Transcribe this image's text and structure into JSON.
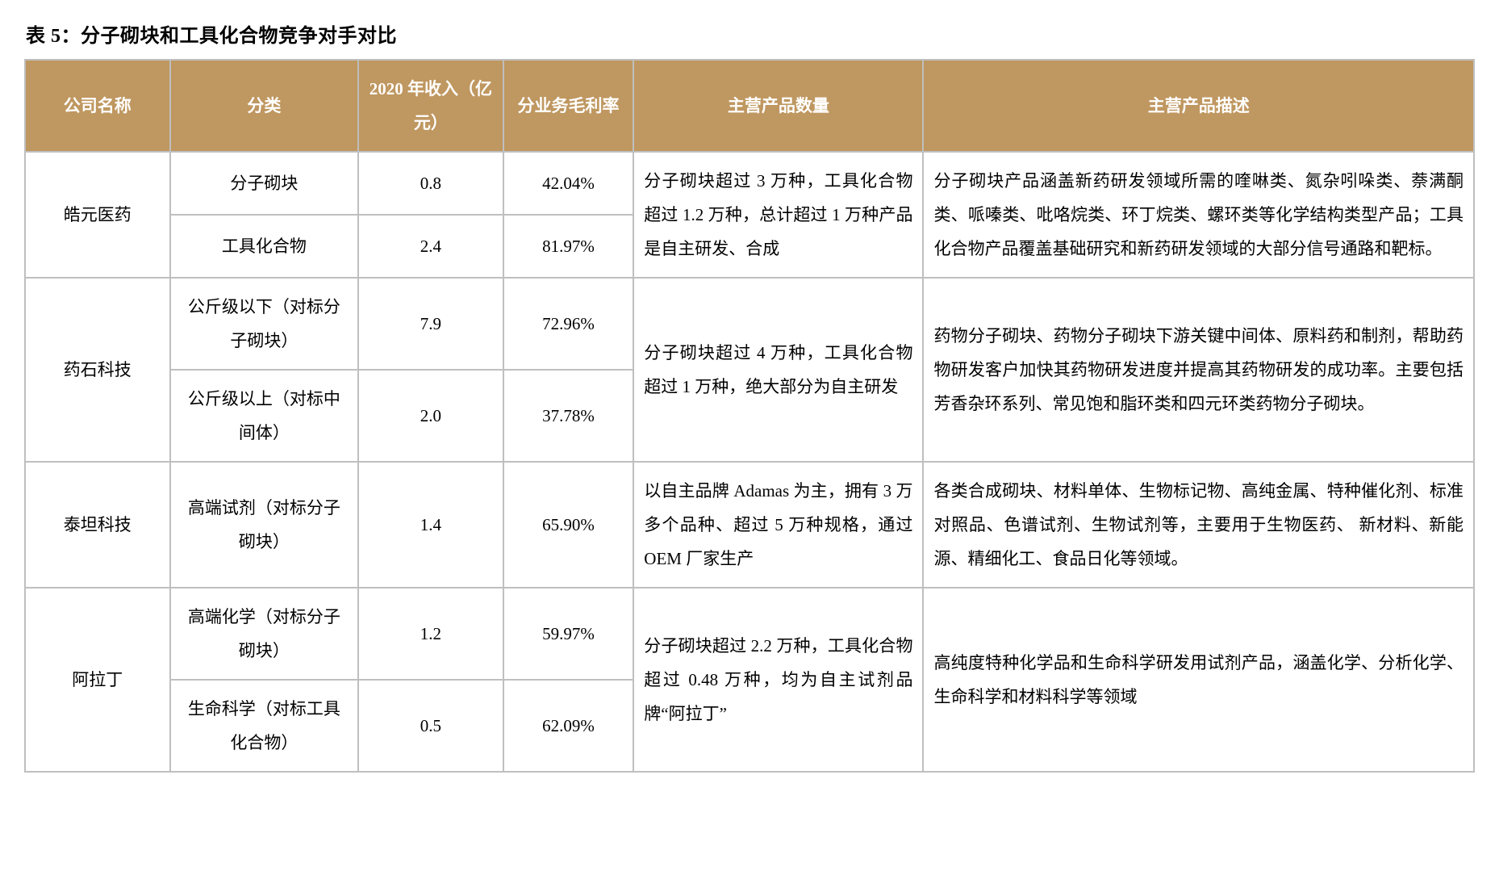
{
  "caption": "表 5：分子砌块和工具化合物竞争对手对比",
  "headers": {
    "company": "公司名称",
    "category": "分类",
    "revenue": "2020 年收入（亿元）",
    "margin": "分业务毛利率",
    "qty": "主营产品数量",
    "desc": "主营产品描述"
  },
  "companies": [
    {
      "name": "皓元医药",
      "segments": [
        {
          "category": "分子砌块",
          "revenue": "0.8",
          "margin": "42.04%"
        },
        {
          "category": "工具化合物",
          "revenue": "2.4",
          "margin": "81.97%"
        }
      ],
      "qty": "分子砌块超过 3 万种，工具化合物超过 1.2 万种，总计超过 1 万种产品是自主研发、合成",
      "desc": "分子砌块产品涵盖新药研发领域所需的喹啉类、氮杂吲哚类、萘满酮类、哌嗪类、吡咯烷类、环丁烷类、螺环类等化学结构类型产品；工具化合物产品覆盖基础研究和新药研发领域的大部分信号通路和靶标。"
    },
    {
      "name": "药石科技",
      "segments": [
        {
          "category": "公斤级以下（对标分子砌块）",
          "revenue": "7.9",
          "margin": "72.96%"
        },
        {
          "category": "公斤级以上（对标中间体）",
          "revenue": "2.0",
          "margin": "37.78%"
        }
      ],
      "qty": "分子砌块超过 4 万种，工具化合物超过 1 万种，绝大部分为自主研发",
      "desc": "药物分子砌块、药物分子砌块下游关键中间体、原料药和制剂，帮助药物研发客户加快其药物研发进度并提高其药物研发的成功率。主要包括芳香杂环系列、常见饱和脂环类和四元环类药物分子砌块。"
    },
    {
      "name": "泰坦科技",
      "segments": [
        {
          "category": "高端试剂（对标分子砌块）",
          "revenue": "1.4",
          "margin": "65.90%"
        }
      ],
      "qty": "以自主品牌 Adamas 为主，拥有 3 万多个品种、超过 5 万种规格，通过OEM 厂家生产",
      "desc": "各类合成砌块、材料单体、生物标记物、高纯金属、特种催化剂、标准对照品、色谱试剂、生物试剂等，主要用于生物医药、 新材料、新能源、精细化工、食品日化等领域。"
    },
    {
      "name": "阿拉丁",
      "segments": [
        {
          "category": "高端化学（对标分子砌块）",
          "revenue": "1.2",
          "margin": "59.97%"
        },
        {
          "category": "生命科学（对标工具化合物）",
          "revenue": "0.5",
          "margin": "62.09%"
        }
      ],
      "qty": "分子砌块超过 2.2 万种，工具化合物超过 0.48 万种，均为自主试剂品牌“阿拉丁”",
      "desc": "高纯度特种化学品和生命科学研发用试剂产品，涵盖化学、分析化学、生命科学和材料科学等领域"
    }
  ],
  "style": {
    "header_bg": "#bf9760",
    "header_fg": "#ffffff",
    "border_color": "#bfbfbf",
    "body_bg": "#ffffff"
  }
}
